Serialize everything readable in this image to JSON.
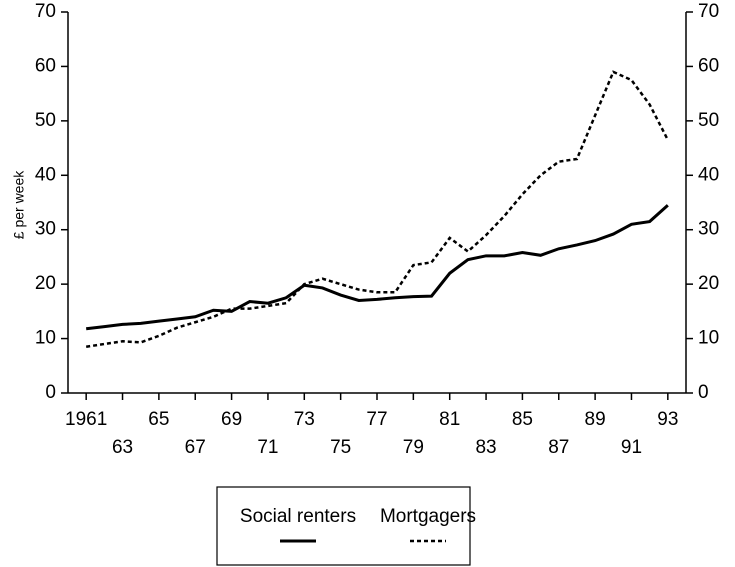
{
  "chart_data": {
    "type": "line",
    "y_label": "£ per week",
    "x": [
      1961,
      1962,
      1963,
      1964,
      1965,
      1966,
      1967,
      1968,
      1969,
      1970,
      1971,
      1972,
      1973,
      1974,
      1975,
      1976,
      1977,
      1978,
      1979,
      1980,
      1981,
      1982,
      1983,
      1984,
      1985,
      1986,
      1987,
      1988,
      1989,
      1990,
      1991,
      1992,
      1993
    ],
    "series": [
      {
        "name": "Social renters",
        "color": "#000000",
        "dash": "solid",
        "values": [
          11.8,
          12.2,
          12.6,
          12.8,
          13.2,
          13.6,
          14,
          15.2,
          15,
          16.8,
          16.5,
          17.5,
          19.8,
          19.3,
          18,
          17,
          17.2,
          17.5,
          17.7,
          17.8,
          22,
          24.5,
          25.2,
          25.2,
          25.8,
          25.3,
          26.5,
          27.2,
          28,
          29.2,
          31,
          31.5,
          34.5
        ]
      },
      {
        "name": "Mortgagers",
        "color": "#000000",
        "dash": "dotted",
        "values": [
          8.5,
          9,
          9.5,
          9.3,
          10.5,
          12,
          13,
          14,
          15.5,
          15.5,
          16,
          16.5,
          20,
          21,
          20,
          19,
          18.5,
          18.5,
          23.5,
          24,
          28.5,
          26,
          29,
          32.5,
          36.5,
          40,
          42.5,
          43,
          51,
          59,
          57.5,
          53,
          46.5
        ]
      }
    ],
    "xlim": [
      1960,
      1994
    ],
    "xticks": [
      1961,
      {
        "value": 1963,
        "label": "63"
      },
      {
        "value": 1965,
        "label": "65"
      },
      {
        "value": 1967,
        "label": "67"
      },
      {
        "value": 1969,
        "label": "69"
      },
      {
        "value": 1971,
        "label": "71"
      },
      {
        "value": 1973,
        "label": "73"
      },
      {
        "value": 1975,
        "label": "75"
      },
      {
        "value": 1977,
        "label": "77"
      },
      {
        "value": 1979,
        "label": "79"
      },
      {
        "value": 1981,
        "label": "81"
      },
      {
        "value": 1983,
        "label": "83"
      },
      {
        "value": 1985,
        "label": "85"
      },
      {
        "value": 1987,
        "label": "87"
      },
      {
        "value": 1989,
        "label": "89"
      },
      {
        "value": 1991,
        "label": "91"
      },
      {
        "value": 1993,
        "label": "93"
      }
    ],
    "ylim": [
      0,
      70
    ],
    "yticks": [
      0,
      10,
      20,
      30,
      40,
      50,
      60,
      70
    ],
    "legend": "bottom"
  }
}
